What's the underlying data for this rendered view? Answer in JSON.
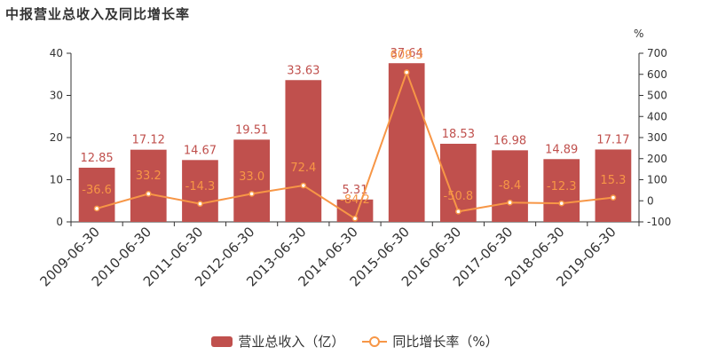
{
  "title": "中报营业总收入及同比增长率",
  "colors": {
    "bar": "#c0504d",
    "line": "#f79646",
    "axis": "#333333",
    "bar_label": "#c0504d",
    "line_label": "#f79646"
  },
  "chart_data": {
    "type": "bar",
    "categories": [
      "2009-06-30",
      "2010-06-30",
      "2011-06-30",
      "2012-06-30",
      "2013-06-30",
      "2014-06-30",
      "2015-06-30",
      "2016-06-30",
      "2017-06-30",
      "2018-06-30",
      "2019-06-30"
    ],
    "series": [
      {
        "name": "营业总收入（亿）",
        "type": "bar",
        "axis": "left",
        "values": [
          12.85,
          17.12,
          14.67,
          19.51,
          33.63,
          5.31,
          37.64,
          18.53,
          16.98,
          14.89,
          17.17
        ],
        "labels": [
          "12.85",
          "17.12",
          "14.67",
          "19.51",
          "33.63",
          "5.31",
          "37.64",
          "18.53",
          "16.98",
          "14.89",
          "17.17"
        ]
      },
      {
        "name": "同比增长率（%）",
        "type": "line",
        "axis": "right",
        "values": [
          -36.6,
          33.2,
          -14.3,
          33.0,
          72.4,
          -84.2,
          609.3,
          -50.8,
          -8.4,
          -12.3,
          15.3
        ],
        "labels": [
          "-36.6",
          "33.2",
          "-14.3",
          "33.0",
          "72.4",
          "-84.2",
          "609.3",
          "-50.8",
          "-8.4",
          "-12.3",
          "15.3"
        ]
      }
    ],
    "left_axis": {
      "min": 0,
      "max": 40,
      "ticks": [
        "0",
        "10",
        "20",
        "30",
        "40"
      ]
    },
    "right_axis": {
      "min": -100,
      "max": 700,
      "unit": "%",
      "ticks": [
        "-100",
        "0",
        "100",
        "200",
        "300",
        "400",
        "500",
        "600",
        "700"
      ]
    },
    "grid": false,
    "legend_position": "bottom"
  }
}
